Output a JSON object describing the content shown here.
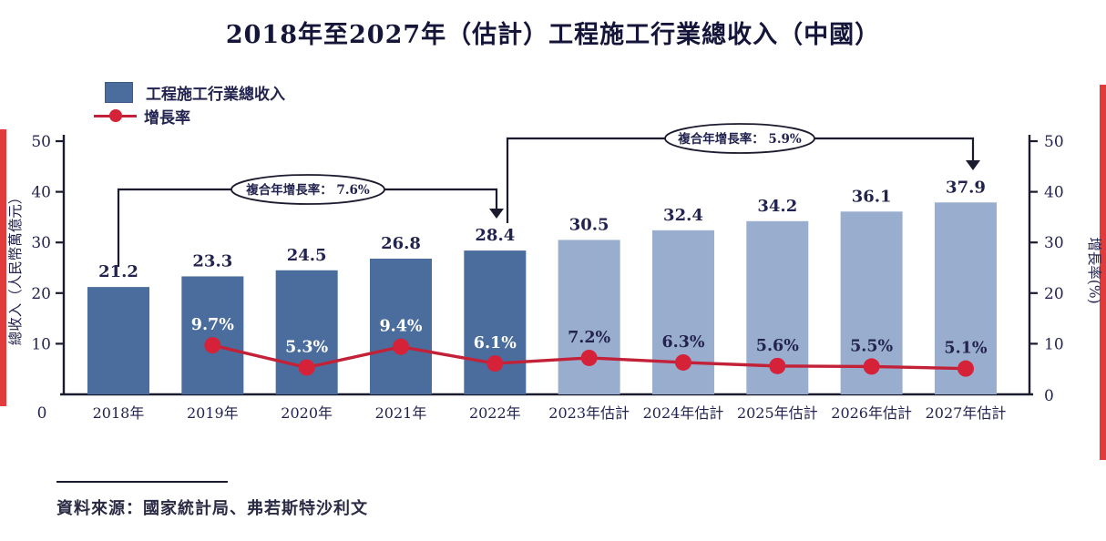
{
  "page": {
    "title": "2018年至2027年（估計）工程施工行業總收入（中國）",
    "source": "資料來源：國家統計局、弗若斯特沙利文"
  },
  "legend": [
    {
      "label": "工程施工行業總收入",
      "type": "bar"
    },
    {
      "label": "增長率",
      "type": "line"
    }
  ],
  "chart_data": {
    "type": "bar+line",
    "title": "2018年至2027年（估計）工程施工行業總收入（中國）",
    "categories": [
      "2018年",
      "2019年",
      "2020年",
      "2021年",
      "2022年",
      "2023年估計",
      "2024年估計",
      "2025年估計",
      "2026年估計",
      "2027年估計"
    ],
    "series": [
      {
        "name": "工程施工行業總收入",
        "type": "bar",
        "values": [
          21.2,
          23.3,
          24.5,
          26.8,
          28.4,
          30.5,
          32.4,
          34.2,
          36.1,
          37.9
        ],
        "actual_count": 5
      },
      {
        "name": "增長率",
        "type": "line",
        "values": [
          null,
          9.7,
          5.3,
          9.4,
          6.1,
          7.2,
          6.3,
          5.6,
          5.5,
          5.1
        ],
        "labels": [
          null,
          "9.7%",
          "5.3%",
          "9.4%",
          "6.1%",
          "7.2%",
          "6.3%",
          "5.6%",
          "5.5%",
          "5.1%"
        ]
      }
    ],
    "left_axis": {
      "label": "總收入（人民幣萬億元）",
      "ticks": [
        0,
        10,
        20,
        30,
        40,
        50
      ],
      "range": [
        0,
        50
      ]
    },
    "right_axis": {
      "label": "增長率(%)",
      "ticks": [
        0,
        10,
        20,
        30,
        40,
        50
      ],
      "range": [
        0,
        50
      ]
    },
    "annotations": [
      {
        "text": "複合年增長率：  7.6%",
        "from_index": 0,
        "to_index": 4
      },
      {
        "text": "複合年增長率：  5.9%",
        "from_index": 4,
        "to_index": 9
      }
    ],
    "axis_origin_label": "0",
    "colors": {
      "bar_actual": "#4a6d9d",
      "bar_estimate": "#99aecf",
      "line": "#c32138",
      "dot": "#d52239",
      "text": "#232350",
      "pct_on_actual": "#ffffff",
      "pct_on_estimate": "#232350",
      "annotation_ink": "#1b1b2f",
      "edge_marker": "#e23b3b"
    }
  }
}
